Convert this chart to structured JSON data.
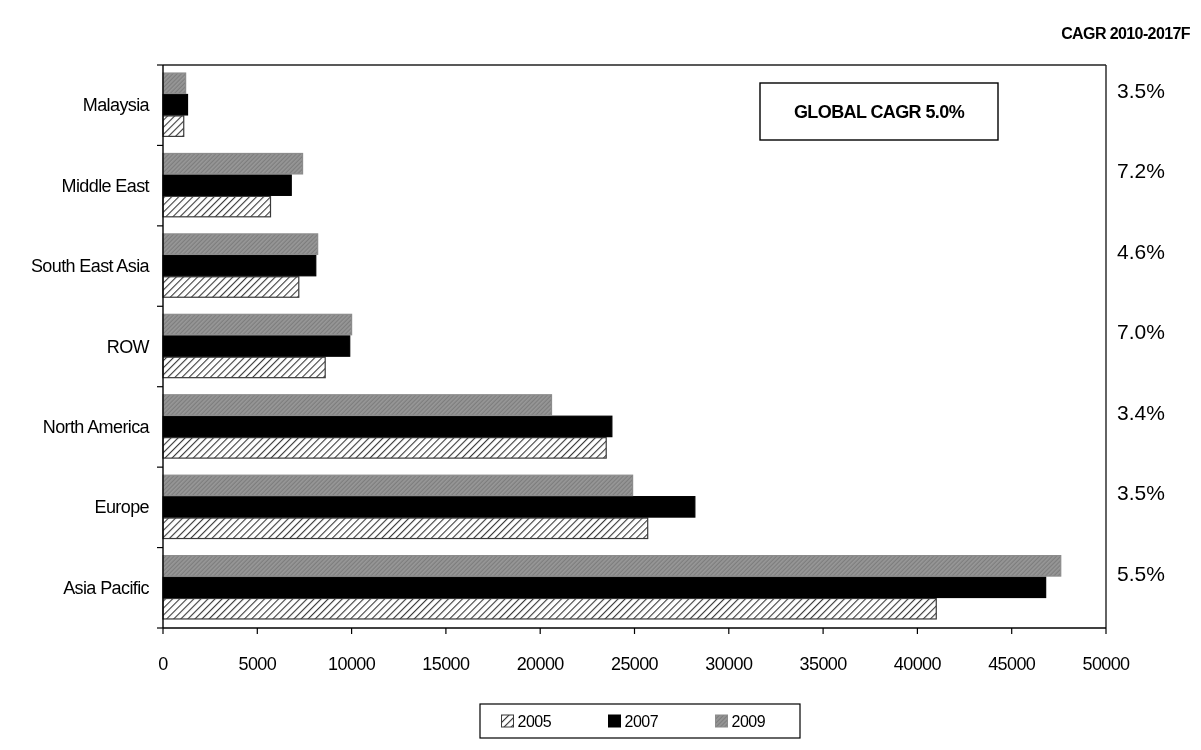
{
  "chart_data": {
    "type": "bar",
    "orientation": "horizontal",
    "categories": [
      "Malaysia",
      "Middle East",
      "South East Asia",
      "ROW",
      "North America",
      "Europe",
      "Asia Pacific"
    ],
    "series": [
      {
        "name": "2005",
        "color": "#3a3a3a",
        "values": [
          1100,
          5700,
          7200,
          8600,
          23500,
          25700,
          41000
        ]
      },
      {
        "name": "2007",
        "color": "#000000",
        "values": [
          1300,
          6800,
          8100,
          9900,
          23800,
          28200,
          46800
        ]
      },
      {
        "name": "2009",
        "color": "#8c8c8c",
        "values": [
          1200,
          7400,
          8200,
          10000,
          20600,
          24900,
          47600
        ]
      }
    ],
    "xlim": [
      0,
      50000
    ],
    "xticks": [
      0,
      5000,
      10000,
      15000,
      20000,
      25000,
      30000,
      35000,
      40000,
      45000,
      50000
    ],
    "legend": "bottom",
    "annotations": [
      "CAGR 2010-2017F",
      "GLOBAL CAGR 5.0%",
      "3.5%",
      "7.2%",
      "4.6%",
      "7.0%",
      "3.4%",
      "3.5%",
      "5.5%"
    ]
  }
}
